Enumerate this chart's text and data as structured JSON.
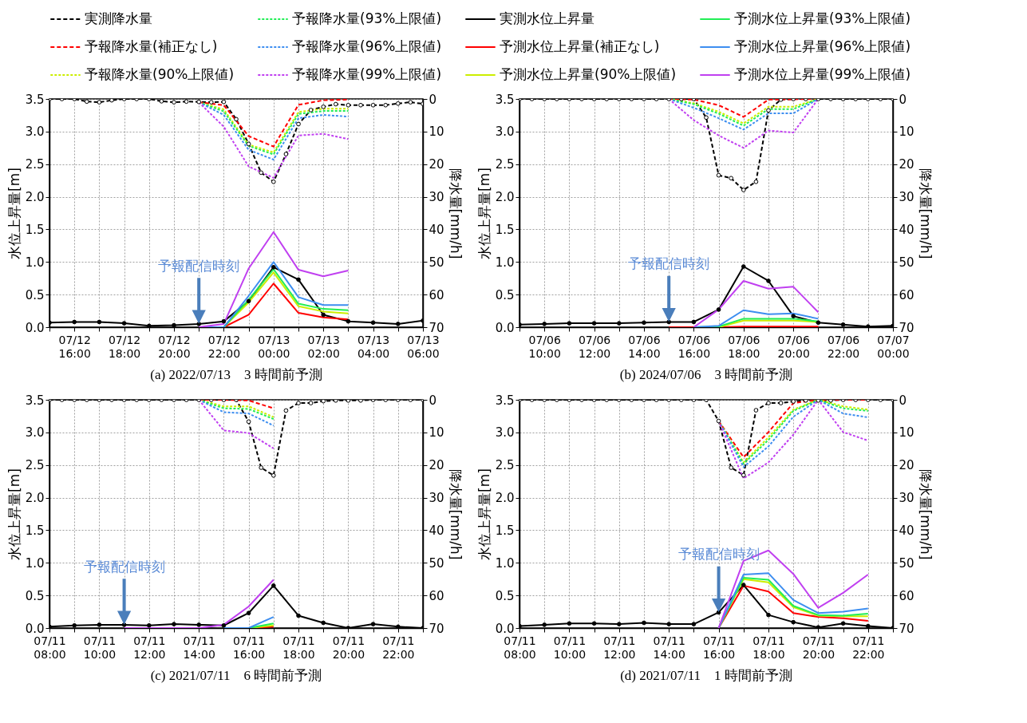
{
  "chart_data": [
    {
      "type": "line",
      "title": "(a) 2022/07/13　3 時間前予測",
      "ylabel": "水位上昇量[m]",
      "y2label": "降水量[mm/h]",
      "grid": true,
      "legend": "top",
      "x": [
        "2022-07-12T15:00",
        "2022-07-12T16:00",
        "2022-07-12T17:00",
        "2022-07-12T18:00",
        "2022-07-12T19:00",
        "2022-07-12T20:00",
        "2022-07-12T21:00",
        "2022-07-12T22:00",
        "2022-07-12T23:00",
        "2022-07-13T00:00",
        "2022-07-13T01:00",
        "2022-07-13T02:00",
        "2022-07-13T03:00",
        "2022-07-13T04:00",
        "2022-07-13T05:00",
        "2022-07-13T06:00"
      ],
      "xlim": [
        "2022-07-12T15:00",
        "2022-07-13T06:00"
      ],
      "xticks": [
        {
          "value": "2022-07-12T15:00",
          "label": null
        },
        {
          "value": "2022-07-12T16:00",
          "label": "07/12\n16:00"
        },
        {
          "value": "2022-07-12T17:00",
          "label": null
        },
        {
          "value": "2022-07-12T18:00",
          "label": "07/12\n18:00"
        },
        {
          "value": "2022-07-12T19:00",
          "label": null
        },
        {
          "value": "2022-07-12T20:00",
          "label": "07/12\n20:00"
        },
        {
          "value": "2022-07-12T21:00",
          "label": null
        },
        {
          "value": "2022-07-12T22:00",
          "label": "07/12\n22:00"
        },
        {
          "value": "2022-07-12T23:00",
          "label": null
        },
        {
          "value": "2022-07-13T00:00",
          "label": "07/13\n00:00"
        },
        {
          "value": "2022-07-13T01:00",
          "label": null
        },
        {
          "value": "2022-07-13T02:00",
          "label": "07/13\n02:00"
        },
        {
          "value": "2022-07-13T03:00",
          "label": null
        },
        {
          "value": "2022-07-13T04:00",
          "label": "07/13\n04:00"
        },
        {
          "value": "2022-07-13T05:00",
          "label": null
        },
        {
          "value": "2022-07-13T06:00",
          "label": "07/13\n06:00"
        }
      ],
      "ylim": [
        0,
        3.5
      ],
      "yticks": [
        {
          "value": 0,
          "label": "0.0"
        },
        0.5,
        {
          "value": 1,
          "label": "1.0"
        },
        1.5,
        {
          "value": 2,
          "label": "2.0"
        },
        2.5,
        {
          "value": 3,
          "label": "3.0"
        },
        3.5
      ],
      "y2lim": [
        70,
        0
      ],
      "y2ticks": [
        0,
        10,
        20,
        30,
        40,
        50,
        60,
        70
      ],
      "annotations": [
        "予報配信時刻"
      ],
      "series": [
        {
          "name": "実測降水量",
          "color": "#000000",
          "axis": "y2",
          "line_style": "dashed",
          "marker": "circle",
          "x": [
            "2022-07-12T15:00",
            "2022-07-12T15:30",
            "2022-07-12T16:00",
            "2022-07-12T16:30",
            "2022-07-12T17:00",
            "2022-07-12T17:30",
            "2022-07-12T18:00",
            "2022-07-12T18:30",
            "2022-07-12T19:00",
            "2022-07-12T19:30",
            "2022-07-12T20:00",
            "2022-07-12T20:30",
            "2022-07-12T21:00",
            "2022-07-12T21:30",
            "2022-07-12T22:00",
            "2022-07-12T22:30",
            "2022-07-12T23:00",
            "2022-07-12T23:30",
            "2022-07-13T00:00",
            "2022-07-13T00:30",
            "2022-07-13T01:00",
            "2022-07-13T01:30",
            "2022-07-13T02:00",
            "2022-07-13T02:30",
            "2022-07-13T03:00",
            "2022-07-13T03:30",
            "2022-07-13T04:00",
            "2022-07-13T04:30",
            "2022-07-13T05:00",
            "2022-07-13T05:30",
            "2022-07-13T06:00"
          ],
          "values": [
            0,
            0,
            0,
            0.8,
            1,
            0.4,
            0,
            0,
            0,
            0.7,
            1,
            0.8,
            0.9,
            1,
            0.9,
            6.2,
            13.8,
            22.6,
            25.4,
            16.9,
            7.7,
            3.4,
            2.4,
            1.6,
            1.9,
            1.9,
            1.9,
            1.9,
            1.4,
            1,
            1.5
          ]
        },
        {
          "name": "予報降水量(補正なし)",
          "color": "#ff0000",
          "axis": "y2",
          "line_style": "dashed",
          "x": [
            "2022-07-12T21:00",
            "2022-07-12T22:00",
            "2022-07-12T23:00",
            "2022-07-13T00:00",
            "2022-07-13T01:00",
            "2022-07-13T02:00",
            "2022-07-13T03:00"
          ],
          "values": [
            1,
            1.9,
            11.4,
            14.6,
            1.8,
            0.4,
            0.2
          ]
        },
        {
          "name": "予報降水量(90%上限値)",
          "color": "#ccee00",
          "axis": "y2",
          "line_style": "dashed",
          "x": [
            "2022-07-12T21:00",
            "2022-07-12T22:00",
            "2022-07-12T23:00",
            "2022-07-13T00:00",
            "2022-07-13T01:00",
            "2022-07-13T02:00",
            "2022-07-13T03:00"
          ],
          "values": [
            1,
            3.2,
            14,
            16.4,
            4,
            3,
            3
          ]
        },
        {
          "name": "予報降水量(93%上限値)",
          "color": "#22ee55",
          "axis": "y2",
          "line_style": "dashed",
          "x": [
            "2022-07-12T21:00",
            "2022-07-12T22:00",
            "2022-07-12T23:00",
            "2022-07-13T00:00",
            "2022-07-13T01:00",
            "2022-07-13T02:00",
            "2022-07-13T03:00"
          ],
          "values": [
            1,
            3.8,
            14.4,
            17,
            4.6,
            3.7,
            3.7
          ]
        },
        {
          "name": "予報降水量(96%上限値)",
          "color": "#3d8ef0",
          "axis": "y2",
          "line_style": "dashed",
          "x": [
            "2022-07-12T21:00",
            "2022-07-12T22:00",
            "2022-07-12T23:00",
            "2022-07-13T00:00",
            "2022-07-13T01:00",
            "2022-07-13T02:00",
            "2022-07-13T03:00"
          ],
          "values": [
            1,
            4.9,
            15.6,
            18.6,
            5.9,
            4.9,
            5.4
          ]
        },
        {
          "name": "予報降水量(99%上限値)",
          "color": "#c040f0",
          "axis": "y2",
          "line_style": "dashed",
          "x": [
            "2022-07-12T21:00",
            "2022-07-12T22:00",
            "2022-07-12T23:00",
            "2022-07-13T00:00",
            "2022-07-13T01:00",
            "2022-07-13T02:00",
            "2022-07-13T03:00"
          ],
          "values": [
            1,
            8.5,
            20.7,
            24.2,
            11.2,
            10.7,
            12.3
          ]
        },
        {
          "name": "実測水位上昇量",
          "color": "#000000",
          "marker": "circle",
          "values": [
            0.07,
            0.08,
            0.08,
            0.06,
            0.02,
            0.03,
            0.05,
            0.09,
            0.4,
            0.92,
            0.73,
            0.19,
            0.09,
            0.07,
            0.05,
            0.1
          ]
        },
        {
          "name": "予測水位上昇量(補正なし)",
          "color": "#ff0000",
          "x": [
            "2022-07-12T21:00",
            "2022-07-12T22:00",
            "2022-07-12T23:00",
            "2022-07-13T00:00",
            "2022-07-13T01:00",
            "2022-07-13T02:00",
            "2022-07-13T03:00"
          ],
          "values": [
            0,
            0,
            0.19,
            0.67,
            0.22,
            0.15,
            0.12
          ]
        },
        {
          "name": "予測水位上昇量(90%上限値)",
          "color": "#ccee00",
          "x": [
            "2022-07-12T21:00",
            "2022-07-12T22:00",
            "2022-07-12T23:00",
            "2022-07-13T00:00",
            "2022-07-13T01:00",
            "2022-07-13T02:00",
            "2022-07-13T03:00"
          ],
          "values": [
            0,
            0,
            0.38,
            0.84,
            0.32,
            0.24,
            0.21
          ]
        },
        {
          "name": "予測水位上昇量(93%上限値)",
          "color": "#22ee55",
          "x": [
            "2022-07-12T21:00",
            "2022-07-12T22:00",
            "2022-07-12T23:00",
            "2022-07-13T00:00",
            "2022-07-13T01:00",
            "2022-07-13T02:00",
            "2022-07-13T03:00"
          ],
          "values": [
            0,
            0,
            0.42,
            0.89,
            0.36,
            0.28,
            0.26
          ]
        },
        {
          "name": "予測水位上昇量(96%上限値)",
          "color": "#3d8ef0",
          "x": [
            "2022-07-12T21:00",
            "2022-07-12T22:00",
            "2022-07-12T23:00",
            "2022-07-13T00:00",
            "2022-07-13T01:00",
            "2022-07-13T02:00",
            "2022-07-13T03:00"
          ],
          "values": [
            0,
            0,
            0.48,
            1.0,
            0.46,
            0.34,
            0.34
          ]
        },
        {
          "name": "予測水位上昇量(99%上限値)",
          "color": "#c040f0",
          "x": [
            "2022-07-12T21:00",
            "2022-07-12T22:00",
            "2022-07-12T23:00",
            "2022-07-13T00:00",
            "2022-07-13T01:00",
            "2022-07-13T02:00",
            "2022-07-13T03:00"
          ],
          "values": [
            0,
            0.05,
            0.9,
            1.46,
            0.88,
            0.78,
            0.87
          ]
        }
      ]
    },
    {
      "type": "line",
      "title": "(b) 2024/07/06　3 時間前予測",
      "ylabel": "水位上昇量[m]",
      "y2label": "降水量[mm/h]",
      "grid": true,
      "x": [
        "2024-07-06T09:00",
        "2024-07-06T10:00",
        "2024-07-06T11:00",
        "2024-07-06T12:00",
        "2024-07-06T13:00",
        "2024-07-06T14:00",
        "2024-07-06T15:00",
        "2024-07-06T16:00",
        "2024-07-06T17:00",
        "2024-07-06T18:00",
        "2024-07-06T19:00",
        "2024-07-06T20:00",
        "2024-07-06T21:00",
        "2024-07-06T22:00",
        "2024-07-06T23:00",
        "2024-07-07T00:00"
      ],
      "xlim": [
        "2024-07-06T09:00",
        "2024-07-07T00:00"
      ],
      "xticks": [
        {
          "value": "2024-07-06T09:00",
          "label": null
        },
        {
          "value": "2024-07-06T10:00",
          "label": "07/06\n10:00"
        },
        {
          "value": "2024-07-06T11:00",
          "label": null
        },
        {
          "value": "2024-07-06T12:00",
          "label": "07/06\n12:00"
        },
        {
          "value": "2024-07-06T13:00",
          "label": null
        },
        {
          "value": "2024-07-06T14:00",
          "label": "07/06\n14:00"
        },
        {
          "value": "2024-07-06T15:00",
          "label": null
        },
        {
          "value": "2024-07-06T16:00",
          "label": "07/06\n16:00"
        },
        {
          "value": "2024-07-06T17:00",
          "label": null
        },
        {
          "value": "2024-07-06T18:00",
          "label": "07/06\n18:00"
        },
        {
          "value": "2024-07-06T19:00",
          "label": null
        },
        {
          "value": "2024-07-06T20:00",
          "label": "07/06\n20:00"
        },
        {
          "value": "2024-07-06T21:00",
          "label": null
        },
        {
          "value": "2024-07-06T22:00",
          "label": "07/06\n22:00"
        },
        {
          "value": "2024-07-06T23:00",
          "label": null
        },
        {
          "value": "2024-07-07T00:00",
          "label": "07/07\n00:00"
        }
      ],
      "ylim": [
        0,
        3.5
      ],
      "yticks": [
        {
          "value": 0,
          "label": "0.0"
        },
        0.5,
        {
          "value": 1,
          "label": "1.0"
        },
        1.5,
        {
          "value": 2,
          "label": "2.0"
        },
        2.5,
        {
          "value": 3,
          "label": "3.0"
        },
        3.5
      ],
      "y2lim": [
        70,
        0
      ],
      "y2ticks": [
        0,
        10,
        20,
        30,
        40,
        50,
        60,
        70
      ],
      "annotations": [
        "予報配信時刻"
      ],
      "series": [
        {
          "name": "実測降水量",
          "color": "#000000",
          "axis": "y2",
          "line_style": "dashed",
          "marker": "circle",
          "x": [
            "2024-07-06T09:00",
            "2024-07-06T09:30",
            "2024-07-06T10:00",
            "2024-07-06T10:30",
            "2024-07-06T11:00",
            "2024-07-06T11:30",
            "2024-07-06T12:00",
            "2024-07-06T12:30",
            "2024-07-06T13:00",
            "2024-07-06T13:30",
            "2024-07-06T14:00",
            "2024-07-06T14:30",
            "2024-07-06T15:00",
            "2024-07-06T15:30",
            "2024-07-06T16:00",
            "2024-07-06T16:30",
            "2024-07-06T17:00",
            "2024-07-06T17:30",
            "2024-07-06T18:00",
            "2024-07-06T18:30",
            "2024-07-06T19:00",
            "2024-07-06T19:30",
            "2024-07-06T20:00",
            "2024-07-06T20:30",
            "2024-07-06T21:00",
            "2024-07-06T21:30",
            "2024-07-06T22:00",
            "2024-07-06T22:30",
            "2024-07-06T23:00",
            "2024-07-06T23:30",
            "2024-07-07T00:00"
          ],
          "values": [
            0,
            0,
            0,
            0,
            0,
            0,
            0,
            0,
            0,
            0,
            0,
            0,
            0,
            0,
            0,
            5.7,
            23.4,
            24.3,
            27.9,
            25.4,
            3.5,
            0.2,
            0,
            0,
            0,
            0,
            0,
            0,
            0,
            0,
            0
          ]
        },
        {
          "name": "予報降水量(補正なし)",
          "color": "#ff0000",
          "axis": "y2",
          "line_style": "dashed",
          "x": [
            "2024-07-06T15:00",
            "2024-07-06T16:00",
            "2024-07-06T17:00",
            "2024-07-06T18:00",
            "2024-07-06T19:00",
            "2024-07-06T20:00",
            "2024-07-06T21:00"
          ],
          "values": [
            0,
            0.2,
            1.9,
            5.5,
            0.2,
            0.1,
            0
          ]
        },
        {
          "name": "予報降水量(90%上限値)",
          "color": "#ccee00",
          "axis": "y2",
          "line_style": "dashed",
          "x": [
            "2024-07-06T15:00",
            "2024-07-06T16:00",
            "2024-07-06T17:00",
            "2024-07-06T18:00",
            "2024-07-06T19:00",
            "2024-07-06T20:00",
            "2024-07-06T21:00"
          ],
          "values": [
            0,
            1.3,
            3.9,
            7.5,
            2.4,
            2.4,
            0
          ]
        },
        {
          "name": "予報降水量(93%上限値)",
          "color": "#22ee55",
          "axis": "y2",
          "line_style": "dashed",
          "x": [
            "2024-07-06T15:00",
            "2024-07-06T16:00",
            "2024-07-06T17:00",
            "2024-07-06T18:00",
            "2024-07-06T19:00",
            "2024-07-06T20:00",
            "2024-07-06T21:00"
          ],
          "values": [
            0,
            1.6,
            4.5,
            8.2,
            3.1,
            3.1,
            0
          ]
        },
        {
          "name": "予報降水量(96%上限値)",
          "color": "#3d8ef0",
          "axis": "y2",
          "line_style": "dashed",
          "x": [
            "2024-07-06T15:00",
            "2024-07-06T16:00",
            "2024-07-06T17:00",
            "2024-07-06T18:00",
            "2024-07-06T19:00",
            "2024-07-06T20:00",
            "2024-07-06T21:00"
          ],
          "values": [
            0,
            2.7,
            5.9,
            9.4,
            4.4,
            4.4,
            0
          ]
        },
        {
          "name": "予報降水量(99%上限値)",
          "color": "#c040f0",
          "axis": "y2",
          "line_style": "dashed",
          "x": [
            "2024-07-06T15:00",
            "2024-07-06T16:00",
            "2024-07-06T17:00",
            "2024-07-06T18:00",
            "2024-07-06T19:00",
            "2024-07-06T20:00",
            "2024-07-06T21:00"
          ],
          "values": [
            0,
            6.5,
            11.2,
            15,
            9.7,
            10.3,
            0
          ]
        },
        {
          "name": "実測水位上昇量",
          "color": "#000000",
          "marker": "circle",
          "values": [
            0.04,
            0.05,
            0.06,
            0.06,
            0.06,
            0.07,
            0.08,
            0.08,
            0.27,
            0.93,
            0.71,
            0.17,
            0.07,
            0.04,
            0.01,
            0.02
          ]
        },
        {
          "name": "予測水位上昇量(補正なし)",
          "color": "#ff0000",
          "x": [
            "2024-07-06T15:00",
            "2024-07-06T16:00",
            "2024-07-06T17:00",
            "2024-07-06T18:00",
            "2024-07-06T19:00",
            "2024-07-06T20:00",
            "2024-07-06T21:00"
          ],
          "values": [
            0,
            0,
            0,
            0.01,
            0.01,
            0.01,
            0.01
          ]
        },
        {
          "name": "予測水位上昇量(90%上限値)",
          "color": "#ccee00",
          "x": [
            "2024-07-06T16:00",
            "2024-07-06T17:00",
            "2024-07-06T18:00",
            "2024-07-06T19:00",
            "2024-07-06T20:00",
            "2024-07-06T21:00"
          ],
          "values": [
            0,
            0,
            0.1,
            0.1,
            0.1,
            0.08
          ]
        },
        {
          "name": "予測水位上昇量(93%上限値)",
          "color": "#22ee55",
          "x": [
            "2024-07-06T16:00",
            "2024-07-06T17:00",
            "2024-07-06T18:00",
            "2024-07-06T19:00",
            "2024-07-06T20:00",
            "2024-07-06T21:00"
          ],
          "values": [
            0,
            0.01,
            0.13,
            0.13,
            0.13,
            0.09
          ]
        },
        {
          "name": "予測水位上昇量(96%上限値)",
          "color": "#3d8ef0",
          "x": [
            "2024-07-06T16:00",
            "2024-07-06T17:00",
            "2024-07-06T18:00",
            "2024-07-06T19:00",
            "2024-07-06T20:00",
            "2024-07-06T21:00"
          ],
          "values": [
            0,
            0.02,
            0.26,
            0.2,
            0.21,
            0.13
          ]
        },
        {
          "name": "予測水位上昇量(99%上限値)",
          "color": "#c040f0",
          "x": [
            "2024-07-06T16:00",
            "2024-07-06T17:00",
            "2024-07-06T18:00",
            "2024-07-06T19:00",
            "2024-07-06T20:00",
            "2024-07-06T21:00"
          ],
          "values": [
            0,
            0.27,
            0.71,
            0.59,
            0.62,
            0.23
          ]
        }
      ]
    },
    {
      "type": "line",
      "title": "(c) 2021/07/11　6 時間前予測",
      "ylabel": "水位上昇量[m]",
      "y2label": "降水量[mm/h]",
      "grid": true,
      "x": [
        "2021-07-11T08:00",
        "2021-07-11T09:00",
        "2021-07-11T10:00",
        "2021-07-11T11:00",
        "2021-07-11T12:00",
        "2021-07-11T13:00",
        "2021-07-11T14:00",
        "2021-07-11T15:00",
        "2021-07-11T16:00",
        "2021-07-11T17:00",
        "2021-07-11T18:00",
        "2021-07-11T19:00",
        "2021-07-11T20:00",
        "2021-07-11T21:00",
        "2021-07-11T22:00",
        "2021-07-11T23:00"
      ],
      "xlim": [
        "2021-07-11T08:00",
        "2021-07-11T23:00"
      ],
      "xticks": [
        {
          "value": "2021-07-11T08:00",
          "label": "07/11\n08:00"
        },
        {
          "value": "2021-07-11T09:00",
          "label": null
        },
        {
          "value": "2021-07-11T10:00",
          "label": "07/11\n10:00"
        },
        {
          "value": "2021-07-11T11:00",
          "label": null
        },
        {
          "value": "2021-07-11T12:00",
          "label": "07/11\n12:00"
        },
        {
          "value": "2021-07-11T13:00",
          "label": null
        },
        {
          "value": "2021-07-11T14:00",
          "label": "07/11\n14:00"
        },
        {
          "value": "2021-07-11T15:00",
          "label": null
        },
        {
          "value": "2021-07-11T16:00",
          "label": "07/11\n16:00"
        },
        {
          "value": "2021-07-11T17:00",
          "label": null
        },
        {
          "value": "2021-07-11T18:00",
          "label": "07/11\n18:00"
        },
        {
          "value": "2021-07-11T19:00",
          "label": null
        },
        {
          "value": "2021-07-11T20:00",
          "label": "07/11\n20:00"
        },
        {
          "value": "2021-07-11T21:00",
          "label": null
        },
        {
          "value": "2021-07-11T22:00",
          "label": "07/11\n22:00"
        },
        {
          "value": "2021-07-11T23:00",
          "label": null
        }
      ],
      "ylim": [
        0,
        3.5
      ],
      "yticks": [
        {
          "value": 0,
          "label": "0.0"
        },
        0.5,
        {
          "value": 1,
          "label": "1.0"
        },
        1.5,
        {
          "value": 2,
          "label": "2.0"
        },
        2.5,
        {
          "value": 3,
          "label": "3.0"
        },
        3.5
      ],
      "y2lim": [
        70,
        0
      ],
      "y2ticks": [
        0,
        10,
        20,
        30,
        40,
        50,
        60,
        70
      ],
      "annotations": [
        "予報配信時刻"
      ],
      "series": [
        {
          "name": "実測降水量",
          "color": "#000000",
          "axis": "y2",
          "line_style": "dashed",
          "marker": "circle",
          "x": [
            "2021-07-11T08:00",
            "2021-07-11T08:30",
            "2021-07-11T09:00",
            "2021-07-11T09:30",
            "2021-07-11T10:00",
            "2021-07-11T10:30",
            "2021-07-11T11:00",
            "2021-07-11T11:30",
            "2021-07-11T12:00",
            "2021-07-11T12:30",
            "2021-07-11T13:00",
            "2021-07-11T13:30",
            "2021-07-11T14:00",
            "2021-07-11T14:30",
            "2021-07-11T15:00",
            "2021-07-11T15:30",
            "2021-07-11T16:00",
            "2021-07-11T16:30",
            "2021-07-11T17:00",
            "2021-07-11T17:30",
            "2021-07-11T18:00",
            "2021-07-11T18:30",
            "2021-07-11T19:00",
            "2021-07-11T19:30",
            "2021-07-11T20:00",
            "2021-07-11T20:30",
            "2021-07-11T21:00",
            "2021-07-11T21:30",
            "2021-07-11T22:00",
            "2021-07-11T22:30",
            "2021-07-11T23:00"
          ],
          "values": [
            0,
            0,
            0,
            0,
            0,
            0,
            0,
            0,
            0,
            0,
            0,
            0,
            0,
            0,
            0,
            0,
            6.7,
            20.8,
            23.2,
            3.3,
            1.0,
            1.0,
            0.4,
            0.2,
            0.2,
            0.2,
            0,
            0,
            0,
            0,
            0
          ]
        },
        {
          "name": "予報降水量(補正なし)",
          "color": "#ff0000",
          "axis": "y2",
          "line_style": "dashed",
          "x": [
            "2021-07-11T14:00",
            "2021-07-11T15:00",
            "2021-07-11T16:00",
            "2021-07-11T17:00"
          ],
          "values": [
            0,
            0,
            0.2,
            2.6
          ]
        },
        {
          "name": "予報降水量(90%上限値)",
          "color": "#ccee00",
          "axis": "y2",
          "line_style": "dashed",
          "x": [
            "2021-07-11T14:00",
            "2021-07-11T15:00",
            "2021-07-11T16:00",
            "2021-07-11T17:00"
          ],
          "values": [
            0,
            2.0,
            2.0,
            5.3
          ]
        },
        {
          "name": "予報降水量(93%上限値)",
          "color": "#22ee55",
          "axis": "y2",
          "line_style": "dashed",
          "x": [
            "2021-07-11T14:00",
            "2021-07-11T15:00",
            "2021-07-11T16:00",
            "2021-07-11T17:00"
          ],
          "values": [
            0,
            2.6,
            2.8,
            5.9
          ]
        },
        {
          "name": "予報降水量(96%上限値)",
          "color": "#3d8ef0",
          "axis": "y2",
          "line_style": "dashed",
          "x": [
            "2021-07-11T14:00",
            "2021-07-11T15:00",
            "2021-07-11T16:00",
            "2021-07-11T17:00"
          ],
          "values": [
            0,
            3.8,
            4.2,
            7.9
          ]
        },
        {
          "name": "予報降水量(99%上限値)",
          "color": "#c040f0",
          "axis": "y2",
          "line_style": "dashed",
          "x": [
            "2021-07-11T14:00",
            "2021-07-11T15:00",
            "2021-07-11T16:00",
            "2021-07-11T17:00"
          ],
          "values": [
            0,
            9.4,
            10.2,
            14.9
          ]
        },
        {
          "name": "実測水位上昇量",
          "color": "#000000",
          "marker": "circle",
          "values": [
            0.02,
            0.04,
            0.05,
            0.05,
            0.04,
            0.06,
            0.05,
            0.04,
            0.23,
            0.65,
            0.19,
            0.08,
            0,
            0.06,
            0.02,
            0
          ]
        },
        {
          "name": "予測水位上昇量(補正なし)",
          "color": "#ff0000",
          "x": [
            "2021-07-11T16:00",
            "2021-07-11T17:00"
          ],
          "values": [
            0,
            0.02
          ]
        },
        {
          "name": "予測水位上昇量(90%上限値)",
          "color": "#ccee00",
          "x": [
            "2021-07-11T16:00",
            "2021-07-11T17:00"
          ],
          "values": [
            0,
            0.04
          ]
        },
        {
          "name": "予測水位上昇量(93%上限値)",
          "color": "#22ee55",
          "x": [
            "2021-07-11T16:00",
            "2021-07-11T17:00"
          ],
          "values": [
            0,
            0.07
          ]
        },
        {
          "name": "予測水位上昇量(96%上限値)",
          "color": "#3d8ef0",
          "x": [
            "2021-07-11T15:00",
            "2021-07-11T16:00",
            "2021-07-11T17:00"
          ],
          "values": [
            0,
            0,
            0.17
          ]
        },
        {
          "name": "予測水位上昇量(99%上限値)",
          "color": "#c040f0",
          "x": [
            "2021-07-11T11:00",
            "2021-07-11T12:00",
            "2021-07-11T13:00",
            "2021-07-11T14:00",
            "2021-07-11T15:00",
            "2021-07-11T16:00",
            "2021-07-11T17:00"
          ],
          "values": [
            0,
            0,
            0,
            0,
            0.05,
            0.33,
            0.74
          ]
        }
      ]
    },
    {
      "type": "line",
      "title": "(d) 2021/07/11　1 時間前予測",
      "ylabel": "水位上昇量[m]",
      "y2label": "降水量[mm/h]",
      "grid": true,
      "x": [
        "2021-07-11T08:00",
        "2021-07-11T09:00",
        "2021-07-11T10:00",
        "2021-07-11T11:00",
        "2021-07-11T12:00",
        "2021-07-11T13:00",
        "2021-07-11T14:00",
        "2021-07-11T15:00",
        "2021-07-11T16:00",
        "2021-07-11T17:00",
        "2021-07-11T18:00",
        "2021-07-11T19:00",
        "2021-07-11T20:00",
        "2021-07-11T21:00",
        "2021-07-11T22:00",
        "2021-07-11T23:00"
      ],
      "xlim": [
        "2021-07-11T08:00",
        "2021-07-11T23:00"
      ],
      "xticks": [
        {
          "value": "2021-07-11T08:00",
          "label": "07/11\n08:00"
        },
        {
          "value": "2021-07-11T09:00",
          "label": null
        },
        {
          "value": "2021-07-11T10:00",
          "label": "07/11\n10:00"
        },
        {
          "value": "2021-07-11T11:00",
          "label": null
        },
        {
          "value": "2021-07-11T12:00",
          "label": "07/11\n12:00"
        },
        {
          "value": "2021-07-11T13:00",
          "label": null
        },
        {
          "value": "2021-07-11T14:00",
          "label": "07/11\n14:00"
        },
        {
          "value": "2021-07-11T15:00",
          "label": null
        },
        {
          "value": "2021-07-11T16:00",
          "label": "07/11\n16:00"
        },
        {
          "value": "2021-07-11T17:00",
          "label": null
        },
        {
          "value": "2021-07-11T18:00",
          "label": "07/11\n18:00"
        },
        {
          "value": "2021-07-11T19:00",
          "label": null
        },
        {
          "value": "2021-07-11T20:00",
          "label": "07/11\n20:00"
        },
        {
          "value": "2021-07-11T21:00",
          "label": null
        },
        {
          "value": "2021-07-11T22:00",
          "label": "07/11\n22:00"
        },
        {
          "value": "2021-07-11T23:00",
          "label": null
        }
      ],
      "ylim": [
        0,
        3.5
      ],
      "yticks": [
        {
          "value": 0,
          "label": "0.0"
        },
        0.5,
        {
          "value": 1,
          "label": "1.0"
        },
        1.5,
        {
          "value": 2,
          "label": "2.0"
        },
        2.5,
        {
          "value": 3,
          "label": "3.0"
        },
        3.5
      ],
      "y2lim": [
        70,
        0
      ],
      "y2ticks": [
        0,
        10,
        20,
        30,
        40,
        50,
        60,
        70
      ],
      "annotations": [
        "予報配信時刻"
      ],
      "series": [
        {
          "name": "実測降水量",
          "color": "#000000",
          "axis": "y2",
          "line_style": "dashed",
          "marker": "circle",
          "x": [
            "2021-07-11T08:00",
            "2021-07-11T08:30",
            "2021-07-11T09:00",
            "2021-07-11T09:30",
            "2021-07-11T10:00",
            "2021-07-11T10:30",
            "2021-07-11T11:00",
            "2021-07-11T11:30",
            "2021-07-11T12:00",
            "2021-07-11T12:30",
            "2021-07-11T13:00",
            "2021-07-11T13:30",
            "2021-07-11T14:00",
            "2021-07-11T14:30",
            "2021-07-11T15:00",
            "2021-07-11T15:30",
            "2021-07-11T16:00",
            "2021-07-11T16:30",
            "2021-07-11T17:00",
            "2021-07-11T17:30",
            "2021-07-11T18:00",
            "2021-07-11T18:30",
            "2021-07-11T19:00",
            "2021-07-11T19:30",
            "2021-07-11T20:00",
            "2021-07-11T20:30",
            "2021-07-11T21:00",
            "2021-07-11T21:30",
            "2021-07-11T22:00",
            "2021-07-11T22:30",
            "2021-07-11T23:00"
          ],
          "values": [
            0,
            0,
            0,
            0,
            0,
            0,
            0,
            0,
            0,
            0,
            0,
            0,
            0,
            0,
            0,
            0,
            6.5,
            20.8,
            23.1,
            3.2,
            1.0,
            1.0,
            0.5,
            0.2,
            0.2,
            0.2,
            0,
            0,
            0,
            0,
            0
          ]
        },
        {
          "name": "予報降水量(補正なし)",
          "color": "#ff0000",
          "axis": "y2",
          "line_style": "dashed",
          "x": [
            "2021-07-11T16:00",
            "2021-07-11T17:00",
            "2021-07-11T18:00",
            "2021-07-11T19:00",
            "2021-07-11T20:00",
            "2021-07-11T21:00",
            "2021-07-11T22:00"
          ],
          "values": [
            6.5,
            17.6,
            9.9,
            1.0,
            0,
            0,
            0
          ]
        },
        {
          "name": "予報降水量(90%上限値)",
          "color": "#ccee00",
          "axis": "y2",
          "line_style": "dashed",
          "x": [
            "2021-07-11T16:00",
            "2021-07-11T17:00",
            "2021-07-11T18:00",
            "2021-07-11T19:00",
            "2021-07-11T20:00",
            "2021-07-11T21:00",
            "2021-07-11T22:00"
          ],
          "values": [
            6.5,
            19.2,
            11.5,
            3.0,
            0,
            2.0,
            3.0
          ]
        },
        {
          "name": "予報降水量(93%上限値)",
          "color": "#22ee55",
          "axis": "y2",
          "line_style": "dashed",
          "x": [
            "2021-07-11T16:00",
            "2021-07-11T17:00",
            "2021-07-11T18:00",
            "2021-07-11T19:00",
            "2021-07-11T20:00",
            "2021-07-11T21:00",
            "2021-07-11T22:00"
          ],
          "values": [
            6.5,
            19.6,
            12.3,
            3.4,
            0,
            2.6,
            3.4
          ]
        },
        {
          "name": "予報降水量(96%上限値)",
          "color": "#3d8ef0",
          "axis": "y2",
          "line_style": "dashed",
          "x": [
            "2021-07-11T16:00",
            "2021-07-11T17:00",
            "2021-07-11T18:00",
            "2021-07-11T19:00",
            "2021-07-11T20:00",
            "2021-07-11T21:00",
            "2021-07-11T22:00"
          ],
          "values": [
            6.5,
            20.6,
            14.3,
            5.2,
            0,
            4.2,
            5.4
          ]
        },
        {
          "name": "予報降水量(99%上限値)",
          "color": "#c040f0",
          "axis": "y2",
          "line_style": "dashed",
          "x": [
            "2021-07-11T16:00",
            "2021-07-11T17:00",
            "2021-07-11T18:00",
            "2021-07-11T19:00",
            "2021-07-11T20:00",
            "2021-07-11T21:00",
            "2021-07-11T22:00"
          ],
          "values": [
            6.5,
            24.1,
            19.2,
            10.7,
            0,
            9.9,
            12.5
          ]
        },
        {
          "name": "実測水位上昇量",
          "color": "#000000",
          "marker": "circle",
          "values": [
            0.03,
            0.05,
            0.07,
            0.07,
            0.06,
            0.08,
            0.06,
            0.06,
            0.24,
            0.66,
            0.2,
            0.09,
            0.01,
            0.07,
            0.03,
            0
          ]
        },
        {
          "name": "予測水位上昇量(補正なし)",
          "color": "#ff0000",
          "x": [
            "2021-07-11T16:00",
            "2021-07-11T17:00",
            "2021-07-11T18:00",
            "2021-07-11T19:00",
            "2021-07-11T20:00",
            "2021-07-11T21:00",
            "2021-07-11T22:00"
          ],
          "values": [
            0,
            0.65,
            0.56,
            0.23,
            0.17,
            0.15,
            0.11
          ]
        },
        {
          "name": "予測水位上昇量(90%上限値)",
          "color": "#ccee00",
          "x": [
            "2021-07-11T16:00",
            "2021-07-11T17:00",
            "2021-07-11T18:00",
            "2021-07-11T19:00",
            "2021-07-11T20:00",
            "2021-07-11T21:00",
            "2021-07-11T22:00"
          ],
          "values": [
            0,
            0.75,
            0.7,
            0.32,
            0.19,
            0.18,
            0.18
          ]
        },
        {
          "name": "予測水位上昇量(93%上限値)",
          "color": "#22ee55",
          "x": [
            "2021-07-11T16:00",
            "2021-07-11T17:00",
            "2021-07-11T18:00",
            "2021-07-11T19:00",
            "2021-07-11T20:00",
            "2021-07-11T21:00",
            "2021-07-11T22:00"
          ],
          "values": [
            0,
            0.77,
            0.74,
            0.34,
            0.2,
            0.19,
            0.22
          ]
        },
        {
          "name": "予測水位上昇量(96%上限値)",
          "color": "#3d8ef0",
          "x": [
            "2021-07-11T16:00",
            "2021-07-11T17:00",
            "2021-07-11T18:00",
            "2021-07-11T19:00",
            "2021-07-11T20:00",
            "2021-07-11T21:00",
            "2021-07-11T22:00"
          ],
          "values": [
            0,
            0.82,
            0.84,
            0.43,
            0.23,
            0.25,
            0.3
          ]
        },
        {
          "name": "予測水位上昇量(99%上限値)",
          "color": "#c040f0",
          "x": [
            "2021-07-11T16:00",
            "2021-07-11T17:00",
            "2021-07-11T18:00",
            "2021-07-11T19:00",
            "2021-07-11T20:00",
            "2021-07-11T21:00",
            "2021-07-11T22:00"
          ],
          "values": [
            0,
            1.03,
            1.19,
            0.83,
            0.31,
            0.54,
            0.82
          ]
        }
      ]
    }
  ]
}
